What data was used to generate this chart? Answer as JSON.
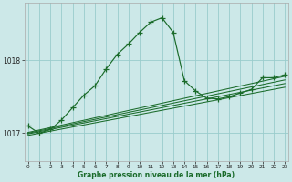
{
  "xlabel": "Graphe pression niveau de la mer (hPa)",
  "bg_color": "#cce8e8",
  "grid_color": "#99cccc",
  "line_color": "#1a6b2a",
  "x_ticks": [
    0,
    1,
    2,
    3,
    4,
    5,
    6,
    7,
    8,
    9,
    10,
    11,
    12,
    13,
    14,
    15,
    16,
    17,
    18,
    19,
    20,
    21,
    22,
    23
  ],
  "y_ticks": [
    1017,
    1018
  ],
  "ylim": [
    1016.62,
    1018.78
  ],
  "xlim": [
    -0.3,
    23.3
  ],
  "main_series": [
    1017.1,
    1017.0,
    1017.05,
    1017.18,
    1017.35,
    1017.52,
    1017.65,
    1017.88,
    1018.08,
    1018.22,
    1018.38,
    1018.52,
    1018.58,
    1018.38,
    1017.72,
    1017.58,
    1017.48,
    1017.47,
    1017.5,
    1017.55,
    1017.6,
    1017.76,
    1017.76,
    1017.8
  ],
  "linear_lines": [
    {
      "x0": 0.0,
      "y0": 1017.01,
      "x1": 23.0,
      "y1": 1017.78
    },
    {
      "x0": 0.0,
      "y0": 1017.0,
      "x1": 23.0,
      "y1": 1017.73
    },
    {
      "x0": 0.0,
      "y0": 1016.99,
      "x1": 23.0,
      "y1": 1017.68
    },
    {
      "x0": 0.0,
      "y0": 1016.97,
      "x1": 23.0,
      "y1": 1017.63
    }
  ]
}
